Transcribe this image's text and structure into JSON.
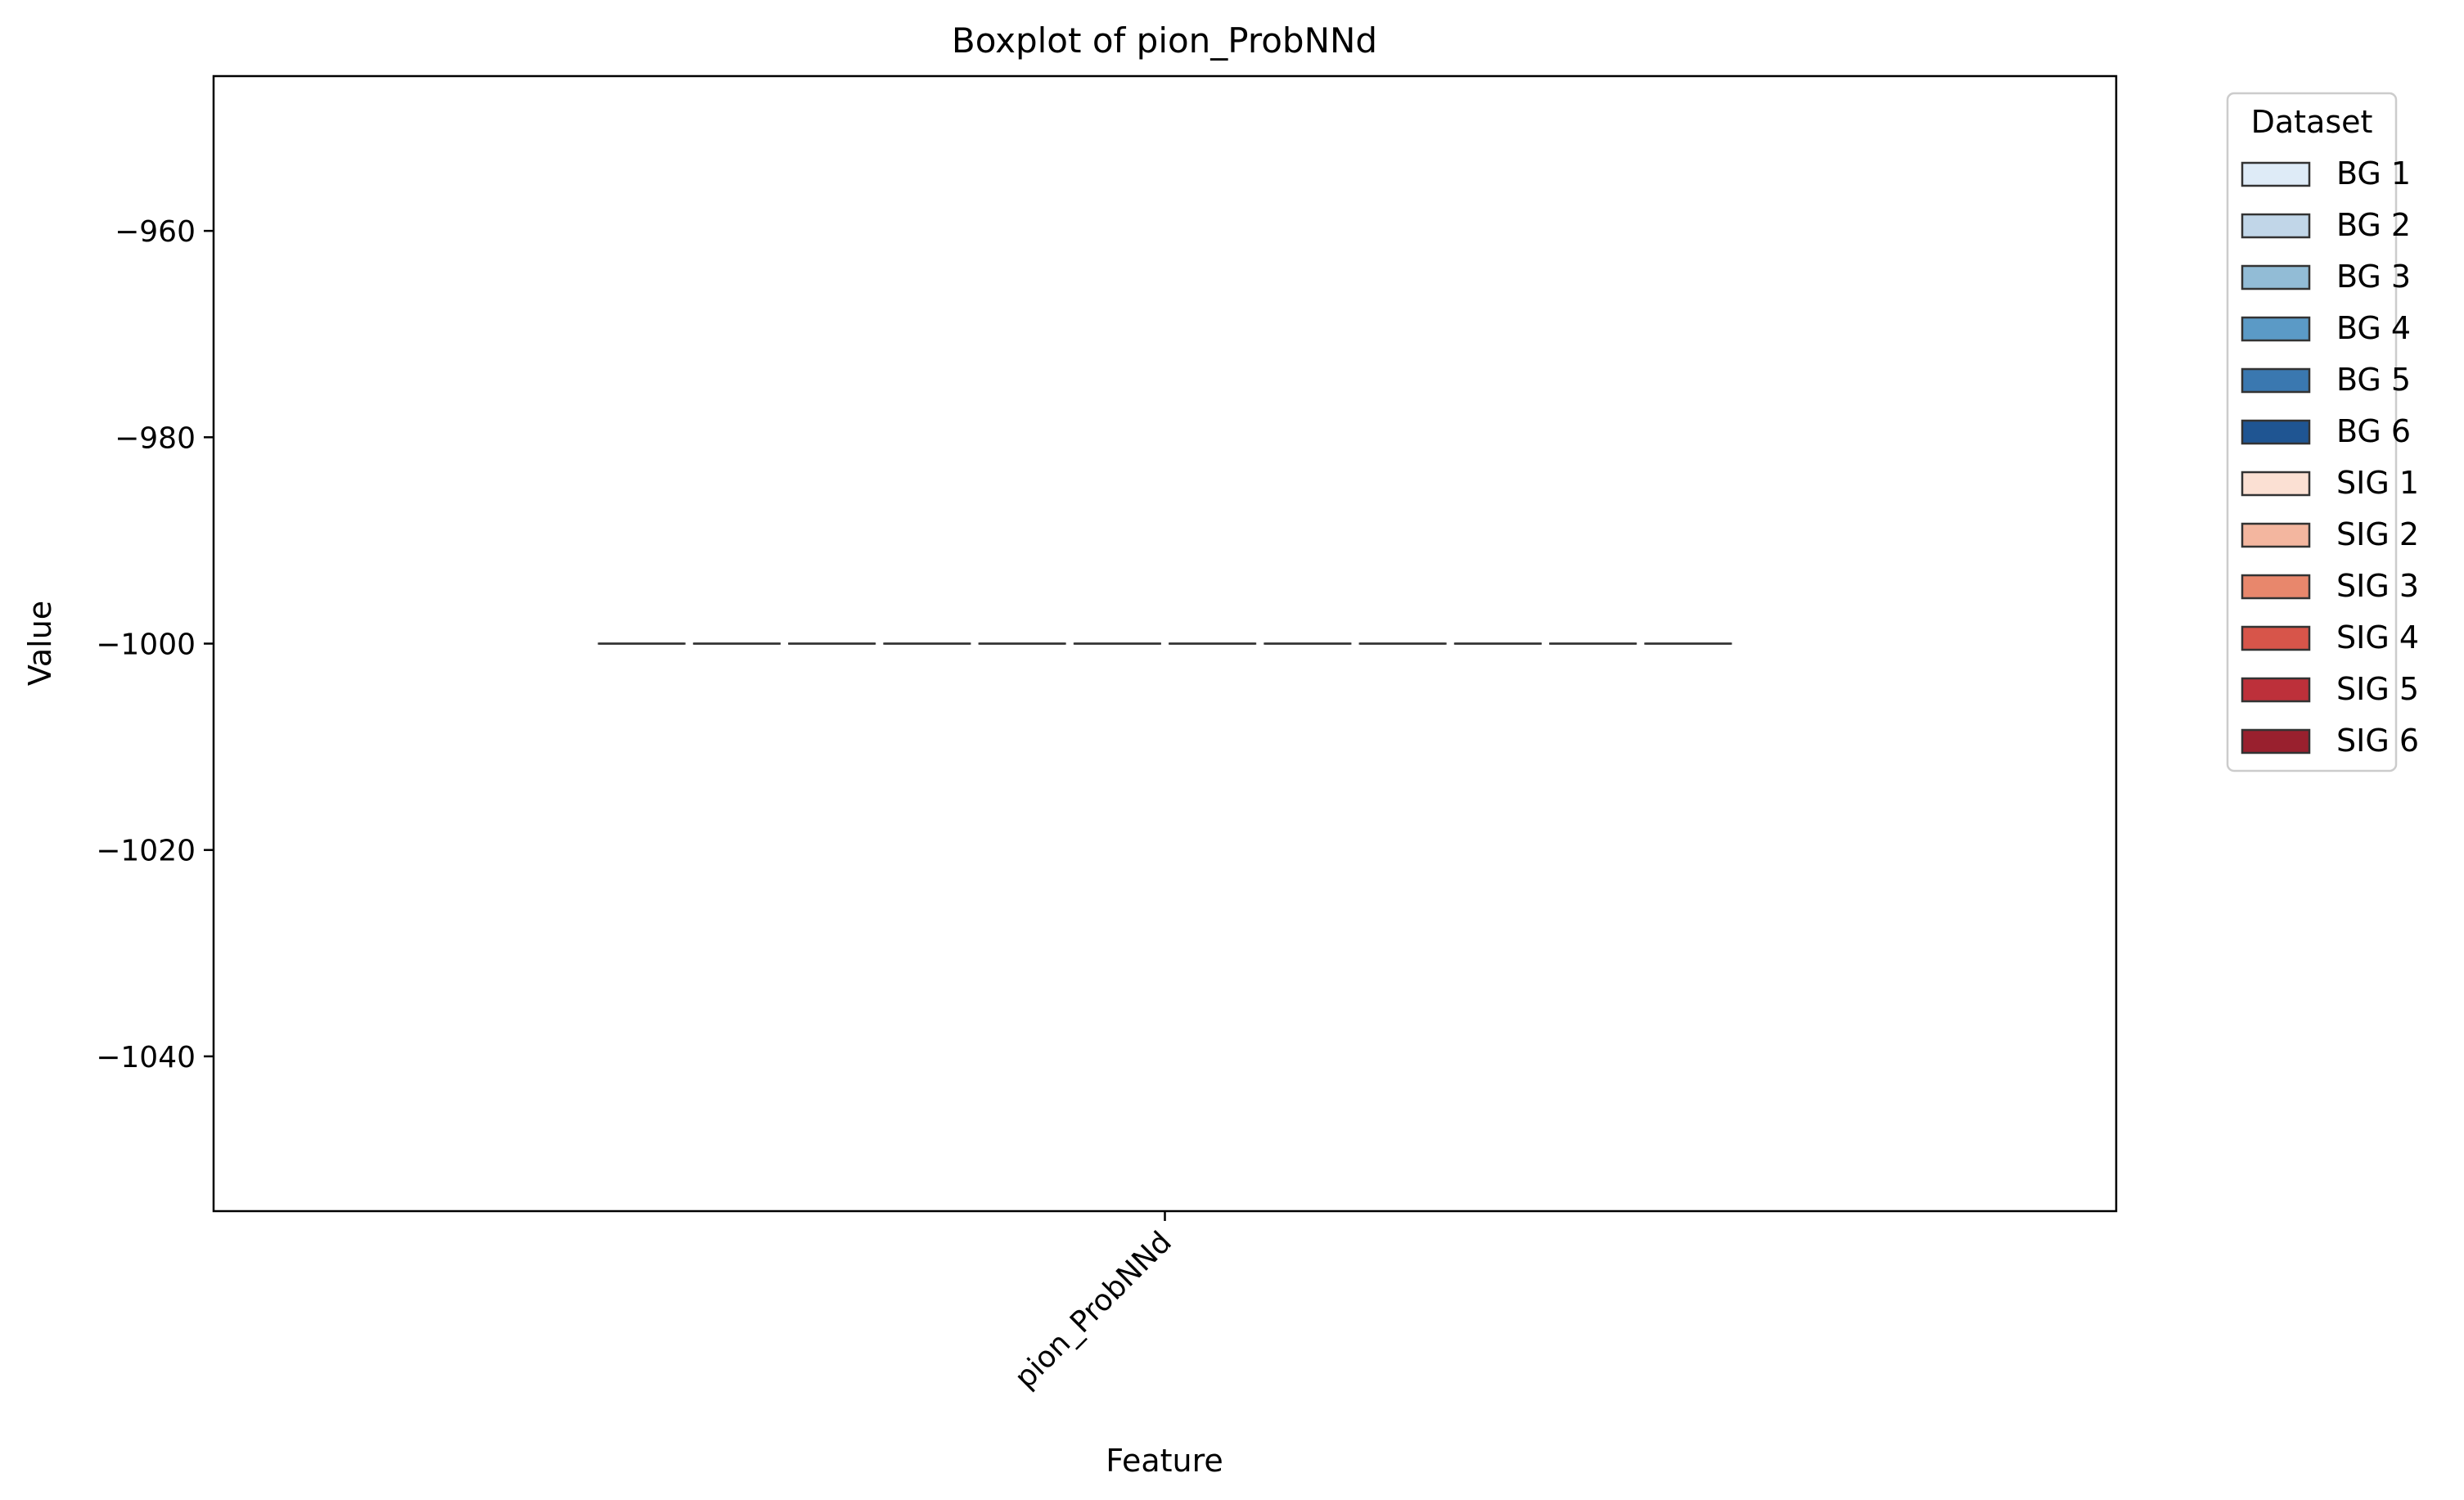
{
  "chart_data": {
    "type": "box",
    "title": "Boxplot of pion_ProbNNd",
    "xlabel": "Feature",
    "ylabel": "Value",
    "categories": [
      "pion_ProbNNd"
    ],
    "ylim": [
      -1055,
      -945
    ],
    "yticks": [
      -960,
      -980,
      -1000,
      -1020,
      -1040
    ],
    "ytick_labels": [
      "−960",
      "−980",
      "−1000",
      "−1020",
      "−1040"
    ],
    "legend": {
      "title": "Dataset",
      "placement": "outside-right"
    },
    "series": [
      {
        "name": "BG 1",
        "color": "#deebf7",
        "min": -1000,
        "q1": -1000,
        "median": -1000,
        "q3": -1000,
        "max": -1000
      },
      {
        "name": "BG 2",
        "color": "#c1d6e8",
        "min": -1000,
        "q1": -1000,
        "median": -1000,
        "q3": -1000,
        "max": -1000
      },
      {
        "name": "BG 3",
        "color": "#92bcd6",
        "min": -1000,
        "q1": -1000,
        "median": -1000,
        "q3": -1000,
        "max": -1000
      },
      {
        "name": "BG 4",
        "color": "#5b9ac6",
        "min": -1000,
        "q1": -1000,
        "median": -1000,
        "q3": -1000,
        "max": -1000
      },
      {
        "name": "BG 5",
        "color": "#3a78b0",
        "min": -1000,
        "q1": -1000,
        "median": -1000,
        "q3": -1000,
        "max": -1000
      },
      {
        "name": "BG 6",
        "color": "#1f5592",
        "min": -1000,
        "q1": -1000,
        "median": -1000,
        "q3": -1000,
        "max": -1000
      },
      {
        "name": "SIG 1",
        "color": "#fbe0d3",
        "min": -1000,
        "q1": -1000,
        "median": -1000,
        "q3": -1000,
        "max": -1000
      },
      {
        "name": "SIG 2",
        "color": "#f3b69f",
        "min": -1000,
        "q1": -1000,
        "median": -1000,
        "q3": -1000,
        "max": -1000
      },
      {
        "name": "SIG 3",
        "color": "#e8876c",
        "min": -1000,
        "q1": -1000,
        "median": -1000,
        "q3": -1000,
        "max": -1000
      },
      {
        "name": "SIG 4",
        "color": "#d7554a",
        "min": -1000,
        "q1": -1000,
        "median": -1000,
        "q3": -1000,
        "max": -1000
      },
      {
        "name": "SIG 5",
        "color": "#bd303a",
        "min": -1000,
        "q1": -1000,
        "median": -1000,
        "q3": -1000,
        "max": -1000
      },
      {
        "name": "SIG 6",
        "color": "#99202e",
        "min": -1000,
        "q1": -1000,
        "median": -1000,
        "q3": -1000,
        "max": -1000
      }
    ]
  }
}
